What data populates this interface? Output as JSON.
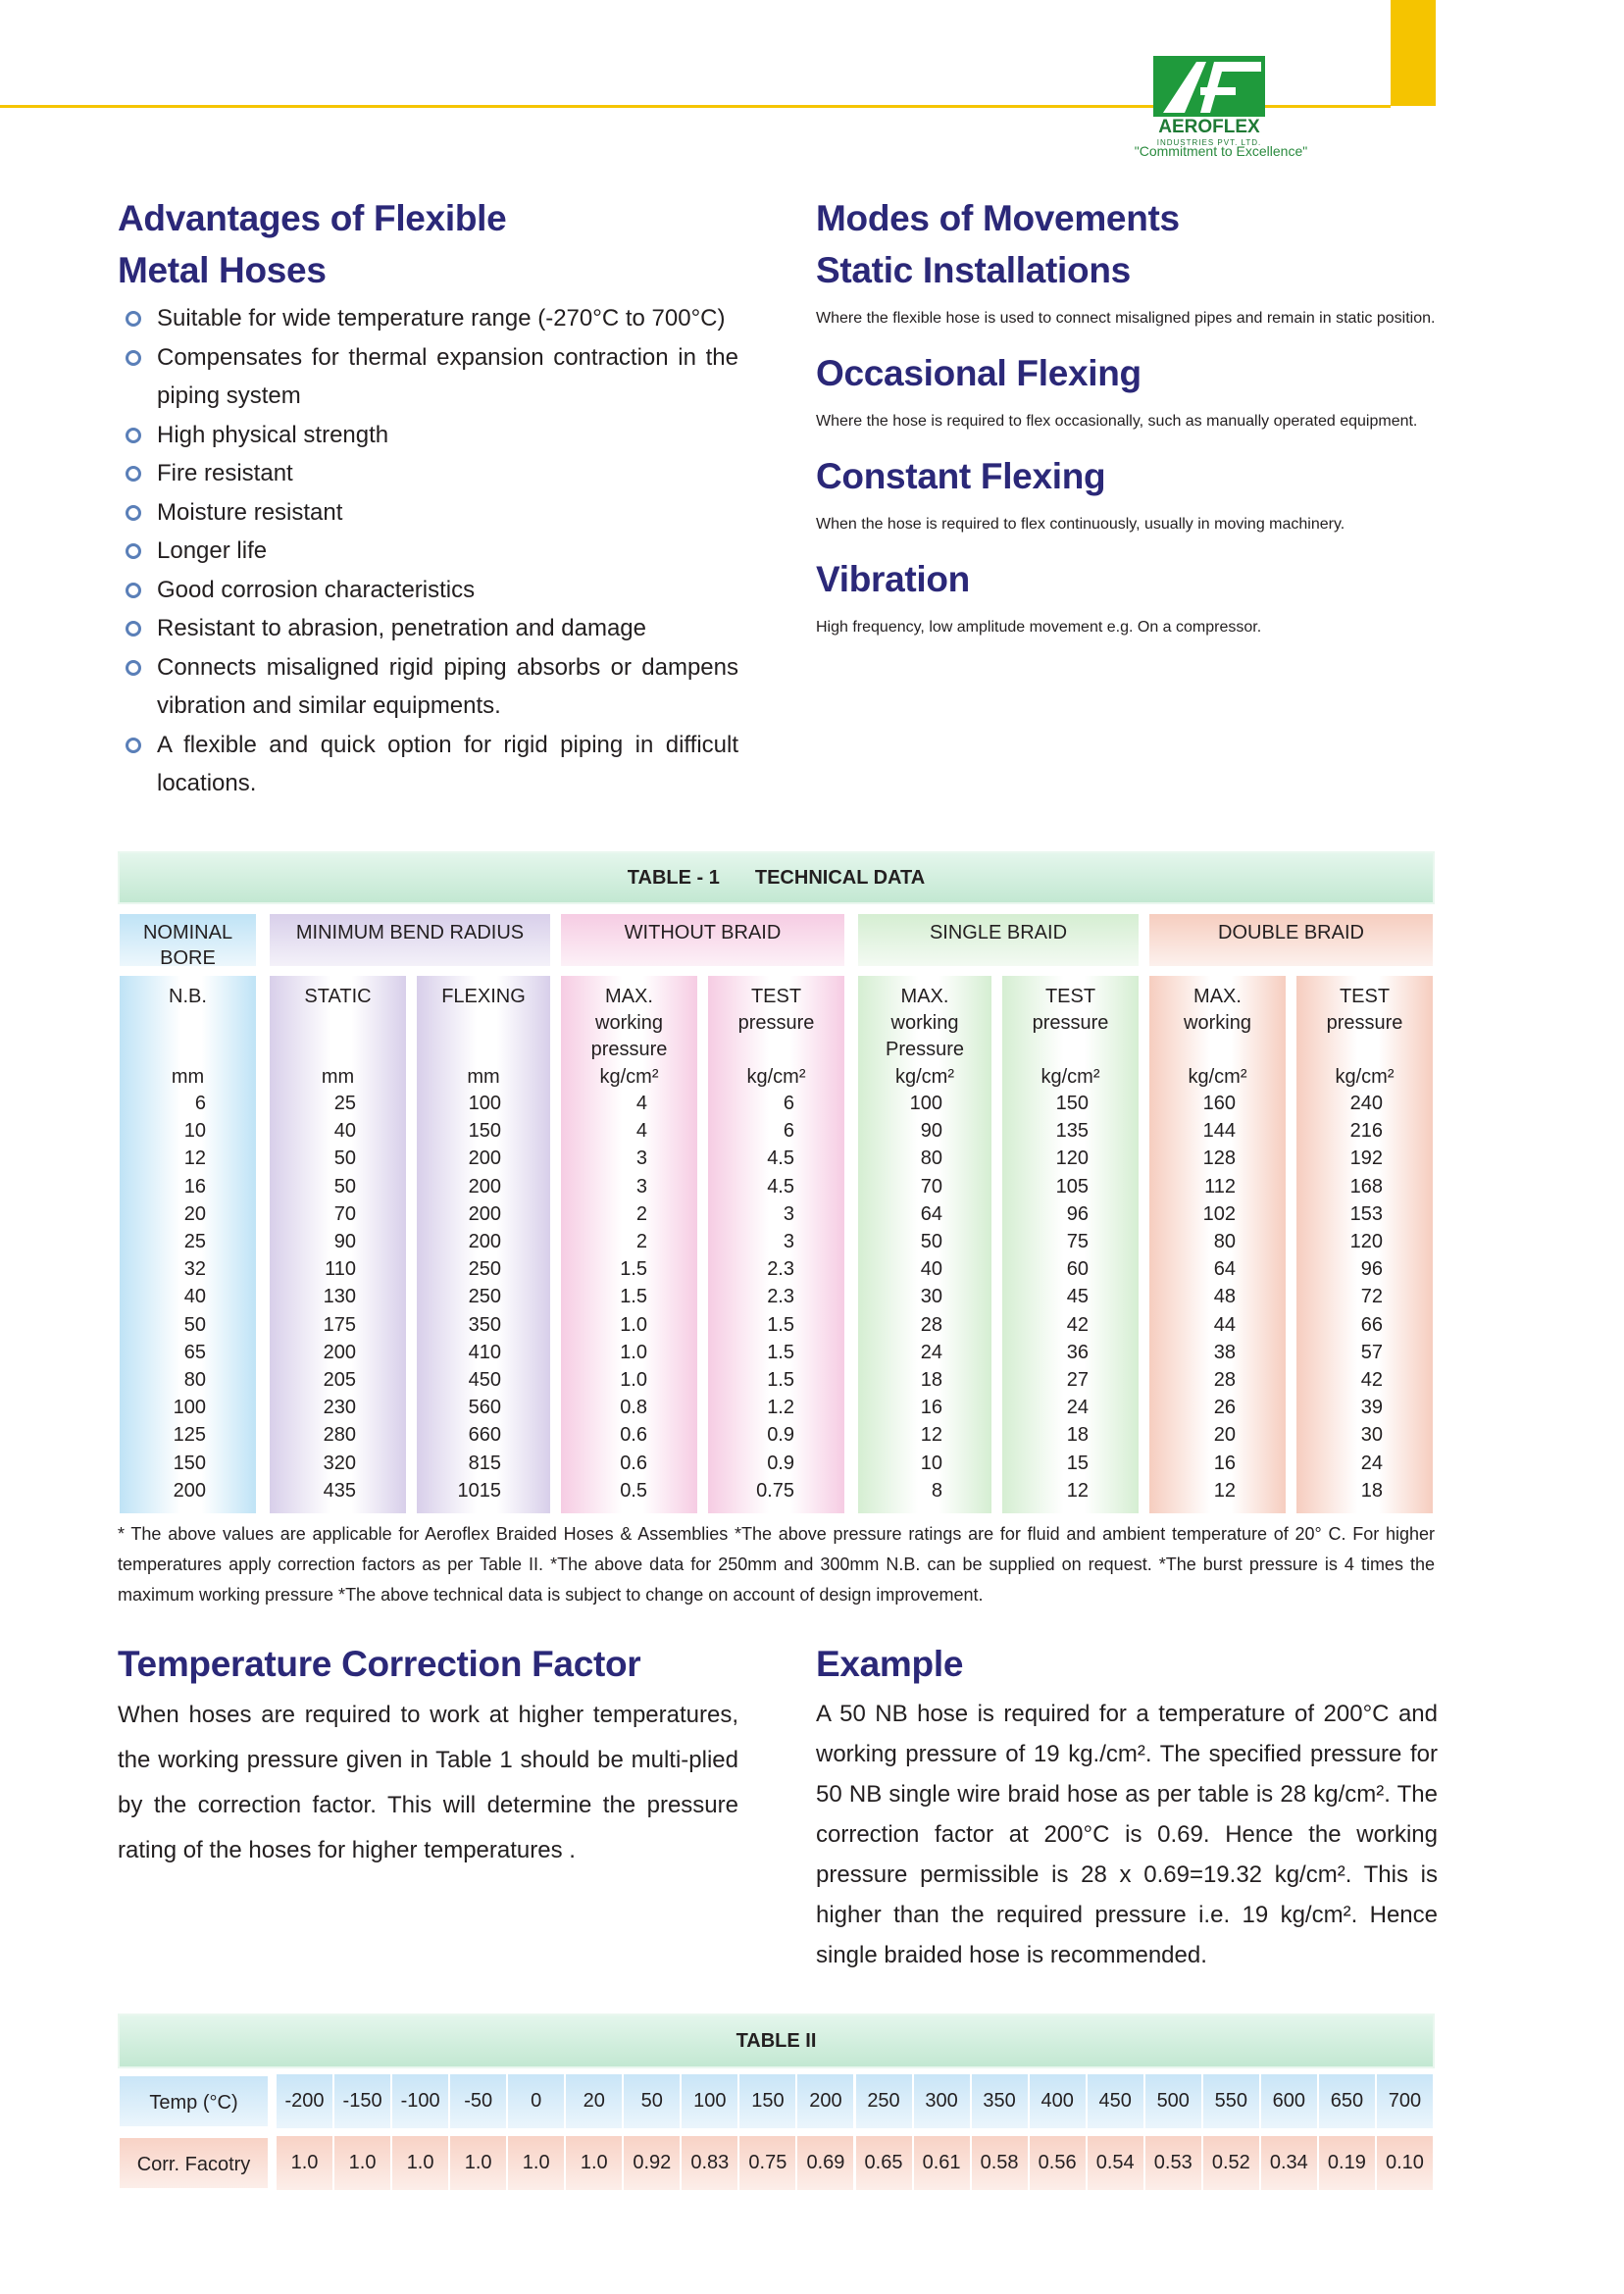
{
  "header": {
    "logo_text": "AEROFLEX",
    "logo_sub": "INDUSTRIES PVT. LTD.",
    "tagline": "\"Commitment to Excellence\""
  },
  "advantages": {
    "title": [
      "Advantages of Flexible",
      "Metal Hoses"
    ],
    "items": [
      "Suitable for wide temperature range (-270°C to 700°C)",
      "Compensates for thermal expansion contraction in the piping system",
      "High physical strength",
      "Fire resistant",
      "Moisture resistant",
      "Longer life",
      "Good corrosion characteristics",
      "Resistant to abrasion, penetration and damage",
      "Connects misaligned rigid piping absorbs or dampens vibration and similar equipments.",
      "A flexible and quick option for rigid piping in difficult locations."
    ]
  },
  "modes": {
    "title": "Modes of Movements",
    "sections": [
      {
        "heading": "Static Installations",
        "text": "Where the flexible hose is used to connect misaligned pipes and remain in static position."
      },
      {
        "heading": "Occasional Flexing",
        "text": "Where the hose is required to flex occasionally, such as manually operated equipment."
      },
      {
        "heading": "Constant Flexing",
        "text": "When the hose is required to flex continuously, usually in moving machinery."
      },
      {
        "heading": "Vibration",
        "text": "High frequency, low amplitude movement  e.g. On a compressor."
      }
    ]
  },
  "table1": {
    "label": "TABLE - 1",
    "caption": "TECHNICAL DATA",
    "groups": [
      "NOMINAL BORE",
      "MINIMUM BEND RADIUS",
      "WITHOUT BRAID",
      "SINGLE BRAID",
      "DOUBLE BRAID"
    ],
    "columns": [
      {
        "header": [
          "N.B."
        ],
        "unit": "mm"
      },
      {
        "header": [
          "STATIC"
        ],
        "unit": "mm"
      },
      {
        "header": [
          "FLEXING"
        ],
        "unit": "mm"
      },
      {
        "header": [
          "MAX.",
          "working",
          "pressure"
        ],
        "unit": "kg/cm²"
      },
      {
        "header": [
          "TEST",
          "pressure"
        ],
        "unit": "kg/cm²"
      },
      {
        "header": [
          "MAX.",
          "working",
          "Pressure"
        ],
        "unit": "kg/cm²"
      },
      {
        "header": [
          "TEST",
          "pressure"
        ],
        "unit": "kg/cm²"
      },
      {
        "header": [
          "MAX.",
          "working"
        ],
        "unit": "kg/cm²"
      },
      {
        "header": [
          "TEST",
          "pressure"
        ],
        "unit": "kg/cm²"
      }
    ],
    "rows": [
      [
        "6",
        "25",
        "100",
        "4",
        "6",
        "100",
        "150",
        "160",
        "240"
      ],
      [
        "10",
        "40",
        "150",
        "4",
        "6",
        "90",
        "135",
        "144",
        "216"
      ],
      [
        "12",
        "50",
        "200",
        "3",
        "4.5",
        "80",
        "120",
        "128",
        "192"
      ],
      [
        "16",
        "50",
        "200",
        "3",
        "4.5",
        "70",
        "105",
        "112",
        "168"
      ],
      [
        "20",
        "70",
        "200",
        "2",
        "3",
        "64",
        "96",
        "102",
        "153"
      ],
      [
        "25",
        "90",
        "200",
        "2",
        "3",
        "50",
        "75",
        "80",
        "120"
      ],
      [
        "32",
        "110",
        "250",
        "1.5",
        "2.3",
        "40",
        "60",
        "64",
        "96"
      ],
      [
        "40",
        "130",
        "250",
        "1.5",
        "2.3",
        "30",
        "45",
        "48",
        "72"
      ],
      [
        "50",
        "175",
        "350",
        "1.0",
        "1.5",
        "28",
        "42",
        "44",
        "66"
      ],
      [
        "65",
        "200",
        "410",
        "1.0",
        "1.5",
        "24",
        "36",
        "38",
        "57"
      ],
      [
        "80",
        "205",
        "450",
        "1.0",
        "1.5",
        "18",
        "27",
        "28",
        "42"
      ],
      [
        "100",
        "230",
        "560",
        "0.8",
        "1.2",
        "16",
        "24",
        "26",
        "39"
      ],
      [
        "125",
        "280",
        "660",
        "0.6",
        "0.9",
        "12",
        "18",
        "20",
        "30"
      ],
      [
        "150",
        "320",
        "815",
        "0.6",
        "0.9",
        "10",
        "15",
        "16",
        "24"
      ],
      [
        "200",
        "435",
        "1015",
        "0.5",
        "0.75",
        "8",
        "12",
        "12",
        "18"
      ]
    ],
    "notes": "* The above values are applicable for Aeroflex Braided Hoses & Assemblies *The above pressure ratings are for fluid and ambient temperature of 20° C. For higher temperatures apply correction factors as per Table II. *The above data for 250mm and 300mm N.B. can be supplied on request. *The burst pressure is 4 times the maximum working pressure *The above technical data is subject to change on account of design improvement."
  },
  "temperature": {
    "title": "Temperature Correction Factor",
    "text": "When hoses are required to work at higher temperatures, the working pressure given in Table 1 should be multi-plied by the correction factor. This will determine the pressure rating of the hoses for higher temperatures ."
  },
  "example": {
    "title": "Example",
    "text": "A 50 NB hose is required for a temperature of 200°C and working pressure of 19 kg./cm². The specified pressure for 50 NB single wire braid hose as per table is 28 kg/cm². The correction factor at 200°C is 0.69. Hence the working pressure permissible is 28 x 0.69=19.32 kg/cm². This is higher than the required pressure i.e. 19 kg/cm². Hence single braided hose is recommended."
  },
  "table2": {
    "title": "TABLE II",
    "rows": [
      {
        "label": "Temp (°C)",
        "values": [
          "-200",
          "-150",
          "-100",
          "-50",
          "0",
          "20",
          "50",
          "100",
          "150",
          "200",
          "250",
          "300",
          "350",
          "400",
          "450",
          "500",
          "550",
          "600",
          "650",
          "700"
        ]
      },
      {
        "label": "Corr. Facotry",
        "values": [
          "1.0",
          "1.0",
          "1.0",
          "1.0",
          "1.0",
          "1.0",
          "0.92",
          "0.83",
          "0.75",
          "0.69",
          "0.65",
          "0.61",
          "0.58",
          "0.56",
          "0.54",
          "0.53",
          "0.52",
          "0.34",
          "0.19",
          "0.10"
        ]
      }
    ]
  }
}
